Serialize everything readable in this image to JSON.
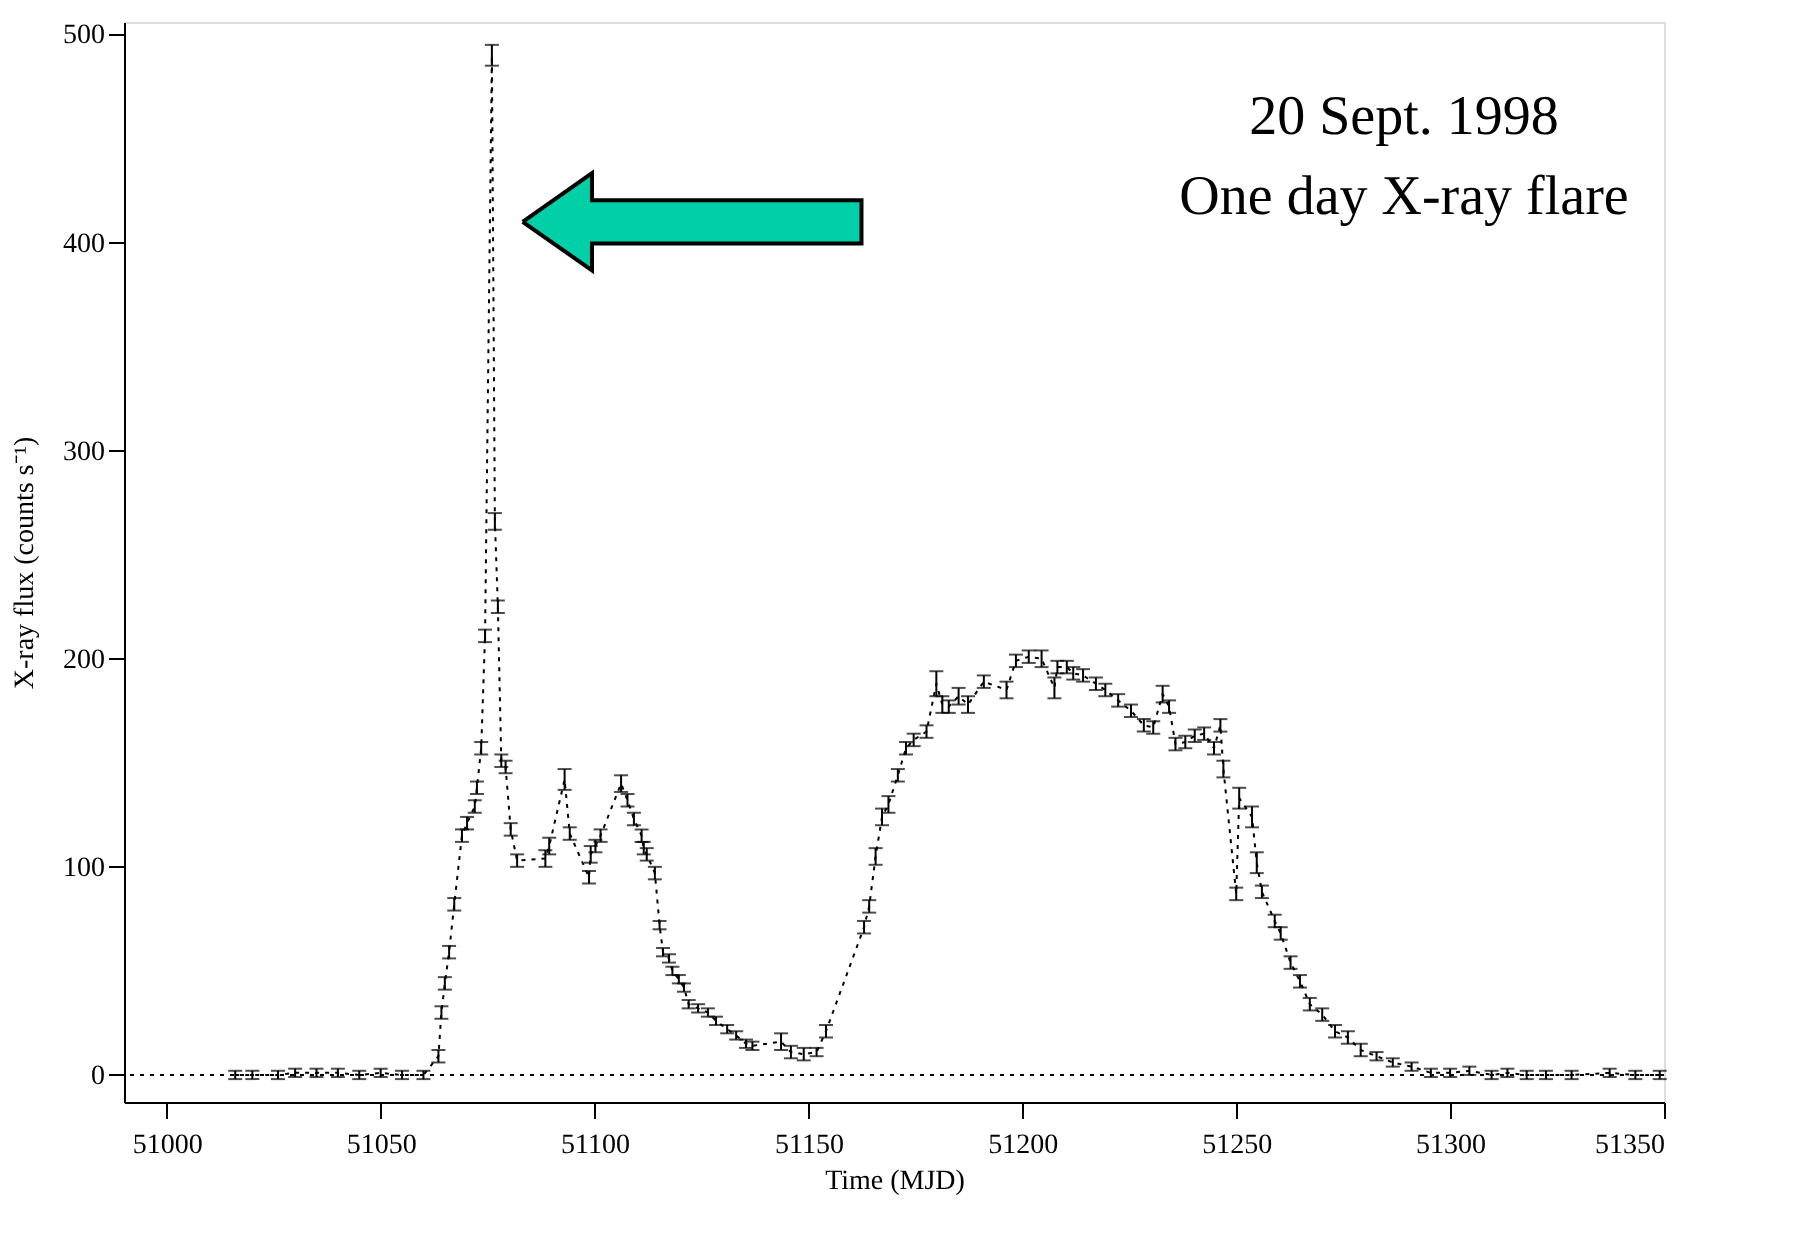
{
  "chart_data": {
    "type": "line",
    "xlabel": "Time (MJD)",
    "ylabel": "X-ray flux (counts s⁻¹)",
    "annotations": [
      "20 Sept. 1998",
      "One day X-ray flare"
    ],
    "xlim": [
      50990,
      51350
    ],
    "xticks": [
      51000,
      51050,
      51100,
      51150,
      51200,
      51250,
      51300,
      51350
    ],
    "ylim": [
      -13,
      506
    ],
    "yticks": [
      0,
      100,
      200,
      300,
      400,
      500
    ],
    "grid": false,
    "marker": "none",
    "line_style": "dotted",
    "ref_lines": [
      {
        "axis": "y",
        "value": 0,
        "line_style": "dotted"
      }
    ],
    "series": [
      {
        "color": "#000000",
        "x": [
          51016,
          51020,
          51026,
          51030,
          51035,
          51040,
          51045,
          51050,
          51055,
          51060,
          51063.5,
          51064.2,
          51065,
          51066,
          51067.2,
          51069,
          51070.2,
          51072,
          51072.5,
          51073.5,
          51074.4,
          51076,
          51076.7,
          51077.4,
          51078.2,
          51079.2,
          51080.4,
          51081.9,
          51088.5,
          51089.4,
          51093,
          51094.2,
          51098.7,
          51099.1,
          51100.2,
          51101.4,
          51106.2,
          51107.7,
          51109.2,
          51111,
          51111.5,
          51112.2,
          51114.1,
          51115.2,
          51116,
          51117.4,
          51118.2,
          51119.7,
          51120.9,
          51122,
          51124.2,
          51126.5,
          51128.4,
          51131,
          51133.1,
          51135.4,
          51136.9,
          51143.6,
          51145.9,
          51148.9,
          51151.9,
          51154.1,
          51163,
          51164.2,
          51165.7,
          51167.2,
          51168.7,
          51170.9,
          51172.8,
          51174.6,
          51177.6,
          51179.9,
          51181.3,
          51182.8,
          51185.1,
          51187.3,
          51191,
          51196.3,
          51198.5,
          51201.5,
          51204.5,
          51207.5,
          51208.2,
          51210.4,
          51211.9,
          51214.2,
          51217.2,
          51219.4,
          51222.4,
          51225.4,
          51228.4,
          51230.6,
          51232.8,
          51234.3,
          51235.8,
          51238.1,
          51240.3,
          51242.5,
          51244.8,
          51246.3,
          51247,
          51250,
          51250.7,
          51253.7,
          51254.8,
          51256,
          51259,
          51260.4,
          51262.7,
          51264.9,
          51267.2,
          51270.1,
          51273.1,
          51276.1,
          51279.1,
          51282.8,
          51286.6,
          51291,
          51295.5,
          51300,
          51304.5,
          51309.7,
          51313.4,
          51317.9,
          51322.4,
          51328.4,
          51337.3,
          51343.3,
          51349
        ],
        "values": [
          0,
          0,
          0,
          1,
          1,
          1,
          0,
          1,
          0,
          0,
          9,
          30,
          44,
          59,
          82,
          115,
          121,
          129,
          138,
          157,
          211,
          490,
          266,
          225,
          151,
          148,
          118,
          103,
          104,
          110,
          142,
          116,
          95,
          106,
          110,
          115,
          140,
          132,
          123,
          115,
          109,
          106,
          97,
          72,
          59,
          56,
          50,
          46,
          42,
          34,
          32,
          30,
          26,
          22,
          19,
          15,
          14,
          16,
          11,
          10,
          11,
          21,
          71,
          81,
          105,
          124,
          130,
          144,
          157,
          161,
          165,
          188,
          178,
          177,
          182,
          178,
          189,
          185,
          199,
          201,
          200,
          186,
          196,
          196,
          193,
          192,
          188,
          185,
          180,
          175,
          168,
          167,
          183,
          177,
          159,
          160,
          163,
          164,
          157,
          168,
          147,
          87,
          133,
          124,
          102,
          88,
          74,
          68,
          54,
          45,
          34,
          29,
          21,
          18,
          12,
          9,
          6,
          4,
          1,
          1,
          2,
          0,
          1,
          0,
          0,
          0,
          1,
          0,
          0
        ],
        "errors": [
          2,
          2,
          2,
          2,
          2,
          2,
          2,
          2,
          2,
          2,
          3,
          3,
          3,
          3,
          3,
          3,
          3,
          3,
          3,
          3,
          3,
          5,
          4,
          3,
          3,
          3,
          3,
          3,
          4,
          4,
          5,
          3,
          3,
          4,
          3,
          3,
          4,
          3,
          3,
          3,
          3,
          3,
          3,
          2,
          2,
          2,
          2,
          2,
          2,
          2,
          2,
          2,
          2,
          2,
          2,
          2,
          2,
          4,
          3,
          3,
          2,
          3,
          3,
          3,
          4,
          4,
          4,
          3,
          3,
          3,
          3,
          6,
          4,
          3,
          4,
          4,
          3,
          4,
          3,
          3,
          4,
          5,
          3,
          3,
          3,
          3,
          3,
          3,
          3,
          3,
          3,
          3,
          4,
          3,
          3,
          3,
          3,
          3,
          3,
          3,
          4,
          3,
          5,
          5,
          5,
          3,
          3,
          3,
          3,
          3,
          3,
          3,
          3,
          3,
          3,
          2,
          2,
          2,
          2,
          2,
          2,
          2,
          2,
          2,
          2,
          2,
          2,
          2,
          2
        ]
      }
    ]
  }
}
